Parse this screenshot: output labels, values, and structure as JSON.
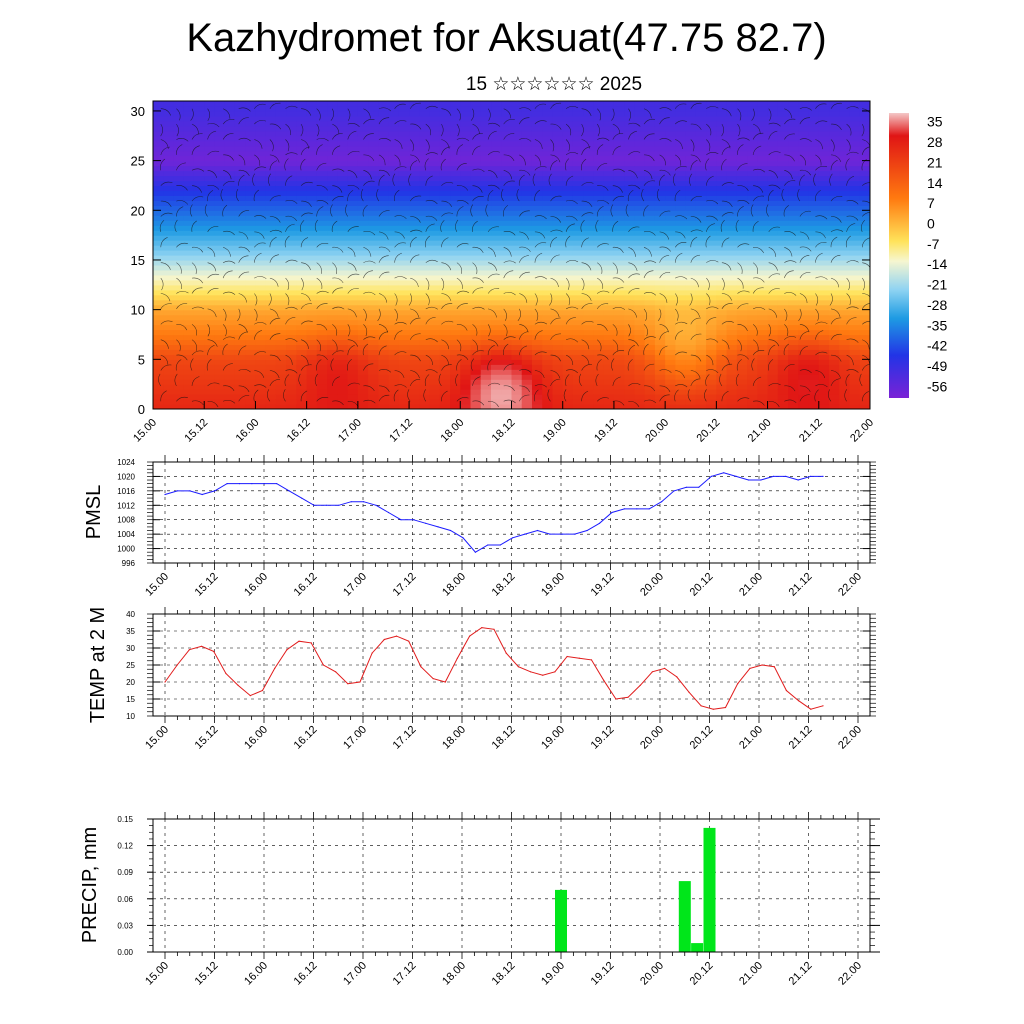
{
  "title": "Kazhydromet for Aksuat(47.75 82.7)",
  "subtitle": "15 ☆☆☆☆☆☆ 2025",
  "colors": {
    "pmsl_line": "#1a1aff",
    "temp_line": "#e11b1b",
    "precip_bar": "#00e61a",
    "grid": "#000000"
  },
  "chart_data": [
    {
      "id": "upper_air",
      "type": "heatmap",
      "x_tick_labels": [
        "15.00",
        "15.12",
        "16.00",
        "16.12",
        "17.00",
        "17.12",
        "18.00",
        "18.12",
        "19.00",
        "19.12",
        "20.00",
        "20.12",
        "21.00",
        "21.12",
        "22.00"
      ],
      "y_tick_labels": [
        "0",
        "5",
        "10",
        "15",
        "20",
        "25",
        "30"
      ],
      "ylim": [
        0,
        31
      ],
      "colorbar_labels": [
        "35",
        "28",
        "21",
        "14",
        "7",
        "0",
        "-7",
        "-14",
        "-21",
        "-28",
        "-35",
        "-42",
        "-49",
        "-56"
      ],
      "colorbar_range": [
        -60,
        38
      ],
      "overlay": "wind streamlines",
      "levels_km": [
        0,
        5,
        10,
        15,
        20,
        25,
        30
      ],
      "temperature_profile": [
        28,
        24,
        12,
        -12,
        -35,
        -58,
        -50
      ],
      "warm_anomalies": [
        {
          "x_index": 6.8,
          "level": 2,
          "delta": 10
        },
        {
          "x_index": 3.6,
          "level": 4,
          "delta": 4
        },
        {
          "x_index": 12.8,
          "level": 4,
          "delta": 5
        },
        {
          "x_index": 10.4,
          "level": 6,
          "delta": -8
        }
      ]
    },
    {
      "id": "pmsl",
      "type": "line",
      "ylabel": "PMSL",
      "ylim": [
        996,
        1024
      ],
      "y_ticks": [
        996,
        1000,
        1004,
        1008,
        1012,
        1016,
        1020,
        1024
      ],
      "x_tick_labels": [
        "15.00",
        "15.12",
        "16.00",
        "16.12",
        "17.00",
        "17.12",
        "18.00",
        "18.12",
        "19.00",
        "19.12",
        "20.00",
        "20.12",
        "21.00",
        "21.12",
        "22.00"
      ],
      "series": [
        {
          "values": [
            1015,
            1016,
            1016,
            1015,
            1016,
            1018,
            1018,
            1018,
            1018,
            1018,
            1016,
            1014,
            1012,
            1012,
            1012,
            1013,
            1013,
            1012,
            1010,
            1008,
            1008,
            1007,
            1006,
            1005,
            1003,
            999,
            1001,
            1001,
            1003,
            1004,
            1005,
            1004,
            1004,
            1004,
            1005,
            1007,
            1010,
            1011,
            1011,
            1011,
            1013,
            1016,
            1017,
            1017,
            1020,
            1021,
            1020,
            1019,
            1019,
            1020,
            1020,
            1019,
            1020,
            1020
          ]
        }
      ]
    },
    {
      "id": "temp2m",
      "type": "line",
      "ylabel": "TEMP at 2 M",
      "ylim": [
        10,
        40
      ],
      "y_ticks": [
        10,
        15,
        20,
        25,
        30,
        35,
        40
      ],
      "x_tick_labels": [
        "15.00",
        "15.12",
        "16.00",
        "16.12",
        "17.00",
        "17.12",
        "18.00",
        "18.12",
        "19.00",
        "19.12",
        "20.00",
        "20.12",
        "21.00",
        "21.12",
        "22.00"
      ],
      "series": [
        {
          "values": [
            20,
            25,
            29.5,
            30.5,
            29,
            22.5,
            19,
            16,
            17.5,
            24,
            29.5,
            32,
            31.5,
            25,
            23,
            19.5,
            20,
            28.5,
            32.5,
            33.5,
            32,
            24.5,
            21,
            20,
            27,
            33.5,
            36,
            35.5,
            28.5,
            24.5,
            23,
            22,
            23,
            27.5,
            27,
            26.5,
            20.5,
            15,
            15.5,
            19,
            23,
            24,
            21.5,
            17,
            13,
            12,
            12.5,
            19.5,
            24,
            25,
            24.5,
            17.5,
            14.5,
            12,
            13
          ]
        }
      ]
    },
    {
      "id": "precip",
      "type": "bar",
      "ylabel": "PRECIP, mm",
      "ylim": [
        0,
        0.15
      ],
      "y_tick_labels": [
        "0.00",
        "0.03",
        "0.06",
        "0.09",
        "0.12",
        "0.15"
      ],
      "x_tick_labels": [
        "15.00",
        "15.12",
        "16.00",
        "16.12",
        "17.00",
        "17.12",
        "18.00",
        "18.12",
        "19.00",
        "19.12",
        "20.00",
        "20.12",
        "21.00",
        "21.12",
        "22.00"
      ],
      "bars": [
        {
          "x": "19.00",
          "value": 0.07
        },
        {
          "x": "20.06",
          "value": 0.08
        },
        {
          "x": "20.09",
          "value": 0.01
        },
        {
          "x": "20.12",
          "value": 0.14
        }
      ]
    }
  ]
}
